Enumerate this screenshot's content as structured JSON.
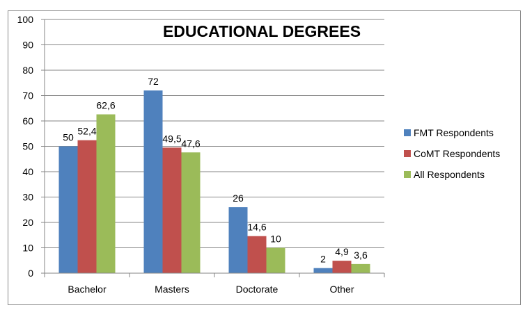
{
  "chart_data": {
    "type": "bar",
    "title": "EDUCATIONAL DEGREES",
    "xlabel": "",
    "ylabel": "",
    "categories": [
      "Bachelor",
      "Masters",
      "Doctorate",
      "Other"
    ],
    "series": [
      {
        "name": "FMT Respondents",
        "color": "#4F81BD",
        "values": [
          50,
          72,
          26,
          2
        ],
        "labels": [
          "50",
          "72",
          "26",
          "2"
        ]
      },
      {
        "name": "CoMT Respondents",
        "color": "#C0504D",
        "values": [
          52.4,
          49.5,
          14.6,
          4.9
        ],
        "labels": [
          "52,4",
          "49,5",
          "14,6",
          "4,9"
        ]
      },
      {
        "name": "All Respondents",
        "color": "#9BBB59",
        "values": [
          62.6,
          47.6,
          10,
          3.6
        ],
        "labels": [
          "62,6",
          "47,6",
          "10",
          "3,6"
        ]
      }
    ],
    "ylim": [
      0,
      100
    ],
    "yticks": [
      "0",
      "10",
      "20",
      "30",
      "40",
      "50",
      "60",
      "70",
      "80",
      "90",
      "100"
    ],
    "grid": true,
    "legend": "right"
  }
}
